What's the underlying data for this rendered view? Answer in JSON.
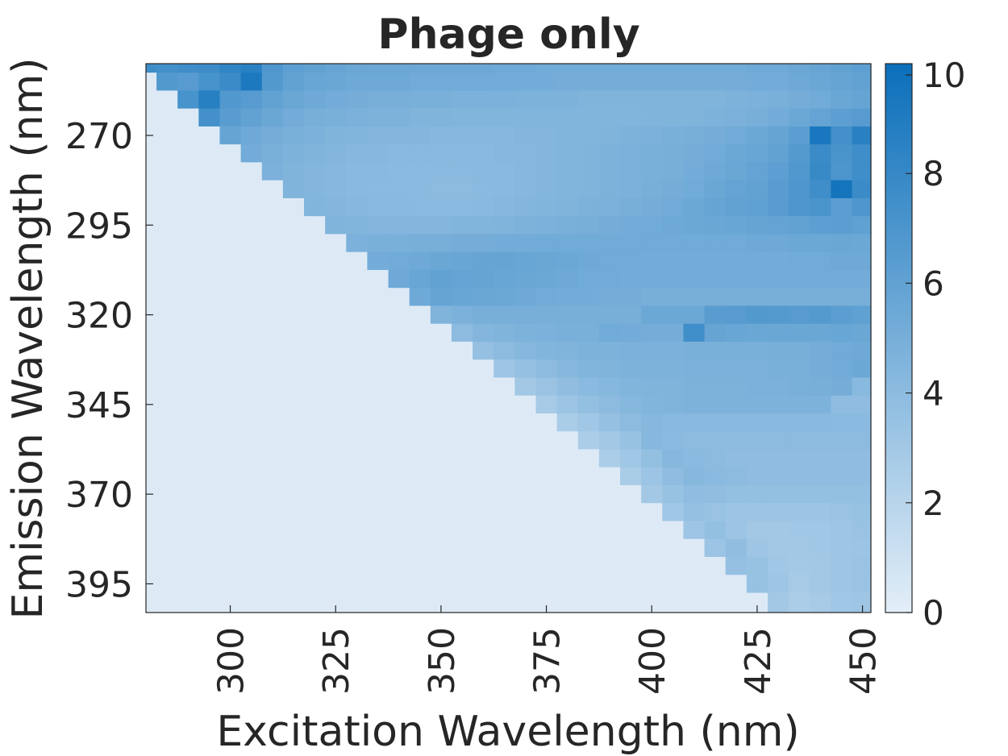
{
  "chart_data": {
    "type": "heatmap",
    "title": "Phage only",
    "xlabel": "Excitation Wavelength (nm)",
    "ylabel": "Emission Wavelength (nm)",
    "x_ticks": [
      300,
      325,
      350,
      375,
      400,
      425,
      450
    ],
    "y_ticks": [
      270,
      295,
      320,
      345,
      370,
      395
    ],
    "colorbar_ticks": [
      0,
      2,
      4,
      6,
      8,
      10
    ],
    "x_range": [
      280,
      452
    ],
    "emission_range": [
      250,
      403
    ],
    "x_centers": [
      280,
      285,
      290,
      295,
      300,
      305,
      310,
      315,
      320,
      325,
      330,
      335,
      340,
      345,
      350,
      355,
      360,
      365,
      370,
      375,
      380,
      385,
      390,
      395,
      400,
      405,
      410,
      415,
      420,
      425,
      430,
      435,
      440,
      445,
      450
    ],
    "y_centers": [
      250,
      255,
      260,
      265,
      270,
      275,
      280,
      285,
      290,
      295,
      300,
      305,
      310,
      315,
      320,
      325,
      330,
      335,
      340,
      345,
      350,
      355,
      360,
      365,
      370,
      375,
      380,
      385,
      390,
      395,
      400
    ],
    "color_range": [
      0,
      10
    ],
    "colors": {
      "low": "#e3eef8",
      "high": "#0b6fba"
    },
    "values": [
      [
        7.6,
        7.4,
        7.6,
        7.7,
        8.3,
        8.6,
        6.9,
        6.2,
        6.0,
        5.8,
        5.6,
        5.6,
        5.6,
        5.5,
        5.5,
        5.5,
        5.5,
        5.4,
        5.4,
        5.3,
        5.3,
        5.3,
        5.3,
        5.3,
        5.3,
        5.3,
        5.3,
        5.3,
        5.3,
        5.4,
        5.4,
        5.6,
        5.8,
        6.0,
        6.2
      ],
      [
        0.3,
        6.7,
        6.5,
        7.2,
        7.8,
        9.2,
        6.7,
        6.0,
        5.7,
        5.6,
        5.4,
        5.4,
        5.4,
        5.3,
        5.3,
        5.3,
        5.3,
        5.2,
        5.2,
        5.2,
        5.1,
        5.1,
        5.1,
        5.1,
        5.1,
        5.1,
        5.1,
        5.1,
        5.1,
        5.2,
        5.2,
        5.4,
        5.6,
        5.8,
        6.0
      ],
      [
        0.3,
        0.3,
        7.2,
        8.7,
        6.8,
        6.5,
        6.0,
        5.6,
        5.4,
        5.2,
        5.1,
        5.0,
        5.0,
        4.9,
        4.9,
        4.8,
        4.8,
        4.8,
        4.7,
        4.7,
        4.7,
        4.6,
        4.6,
        4.6,
        4.6,
        4.6,
        4.6,
        4.6,
        4.7,
        4.8,
        4.9,
        5.1,
        5.3,
        5.6,
        5.8
      ],
      [
        0.3,
        0.3,
        0.3,
        7.4,
        6.4,
        6.0,
        5.6,
        5.2,
        5.0,
        4.9,
        4.8,
        4.7,
        4.7,
        4.6,
        4.6,
        4.5,
        4.5,
        4.5,
        4.5,
        4.5,
        4.5,
        4.5,
        4.5,
        4.5,
        4.6,
        4.6,
        4.6,
        4.7,
        4.8,
        5.0,
        5.2,
        5.5,
        5.9,
        6.2,
        6.5
      ],
      [
        0.3,
        0.3,
        0.3,
        0.3,
        5.8,
        5.4,
        5.1,
        4.9,
        4.8,
        4.6,
        4.5,
        4.4,
        4.4,
        4.4,
        4.3,
        4.3,
        4.3,
        4.3,
        4.4,
        4.4,
        4.5,
        4.5,
        4.6,
        4.7,
        4.8,
        4.9,
        5.0,
        5.1,
        5.3,
        5.5,
        5.8,
        6.3,
        9.4,
        7.4,
        8.6
      ],
      [
        0.3,
        0.3,
        0.3,
        0.3,
        0.3,
        5.2,
        4.9,
        4.7,
        4.6,
        4.4,
        4.3,
        4.3,
        4.2,
        4.2,
        4.2,
        4.2,
        4.2,
        4.3,
        4.3,
        4.4,
        4.5,
        4.6,
        4.7,
        4.8,
        4.9,
        5.0,
        5.1,
        5.3,
        5.5,
        5.7,
        6.0,
        6.6,
        7.8,
        7.1,
        7.6
      ],
      [
        0.3,
        0.3,
        0.3,
        0.3,
        0.3,
        0.3,
        4.8,
        4.6,
        4.4,
        4.3,
        4.2,
        4.2,
        4.1,
        4.1,
        4.1,
        4.1,
        4.2,
        4.2,
        4.3,
        4.4,
        4.5,
        4.6,
        4.7,
        4.8,
        4.9,
        5.0,
        5.2,
        5.4,
        5.6,
        5.9,
        6.2,
        6.8,
        7.9,
        7.0,
        7.6
      ],
      [
        0.3,
        0.3,
        0.3,
        0.3,
        0.3,
        0.3,
        0.3,
        4.6,
        4.4,
        4.3,
        4.2,
        4.1,
        4.1,
        4.1,
        4.0,
        4.0,
        4.1,
        4.2,
        4.3,
        4.4,
        4.5,
        4.6,
        4.7,
        4.8,
        5.0,
        5.1,
        5.3,
        5.6,
        5.9,
        6.0,
        6.4,
        6.9,
        7.6,
        9.6,
        7.8
      ],
      [
        0.3,
        0.3,
        0.3,
        0.3,
        0.3,
        0.3,
        0.3,
        0.3,
        4.5,
        4.4,
        4.3,
        4.2,
        4.2,
        4.1,
        4.1,
        4.1,
        4.2,
        4.3,
        4.4,
        4.5,
        4.6,
        4.7,
        4.8,
        5.0,
        5.1,
        5.3,
        5.5,
        5.8,
        6.0,
        6.1,
        6.5,
        6.9,
        7.1,
        6.3,
        6.9
      ],
      [
        0.3,
        0.3,
        0.3,
        0.3,
        0.3,
        0.3,
        0.3,
        0.3,
        0.3,
        4.6,
        4.5,
        4.4,
        4.4,
        4.4,
        4.4,
        4.5,
        4.5,
        4.6,
        4.7,
        4.8,
        4.9,
        5.0,
        5.1,
        5.2,
        5.3,
        5.4,
        5.5,
        5.6,
        5.7,
        5.8,
        5.9,
        6.0,
        6.2,
        6.3,
        6.1
      ],
      [
        0.3,
        0.3,
        0.3,
        0.3,
        0.3,
        0.3,
        0.3,
        0.3,
        0.3,
        0.3,
        4.8,
        4.9,
        4.9,
        5.0,
        5.0,
        5.1,
        5.1,
        5.2,
        5.2,
        5.3,
        5.3,
        5.3,
        5.3,
        5.3,
        5.3,
        5.3,
        5.3,
        5.3,
        5.3,
        5.4,
        5.4,
        5.5,
        5.5,
        5.6,
        5.5
      ],
      [
        0.3,
        0.3,
        0.3,
        0.3,
        0.3,
        0.3,
        0.3,
        0.3,
        0.3,
        0.3,
        0.3,
        5.2,
        5.3,
        5.4,
        5.6,
        5.7,
        5.8,
        5.8,
        5.7,
        5.6,
        5.5,
        5.4,
        5.3,
        5.3,
        5.2,
        5.2,
        5.2,
        5.2,
        5.2,
        5.2,
        5.2,
        5.3,
        5.3,
        5.4,
        5.4
      ],
      [
        0.3,
        0.3,
        0.3,
        0.3,
        0.3,
        0.3,
        0.3,
        0.3,
        0.3,
        0.3,
        0.3,
        0.3,
        5.4,
        5.7,
        6.0,
        5.9,
        5.8,
        5.7,
        5.6,
        5.5,
        5.4,
        5.3,
        5.3,
        5.2,
        5.2,
        5.2,
        5.2,
        5.2,
        5.2,
        5.2,
        5.2,
        5.2,
        5.2,
        5.2,
        5.2
      ],
      [
        0.3,
        0.3,
        0.3,
        0.3,
        0.3,
        0.3,
        0.3,
        0.3,
        0.3,
        0.3,
        0.3,
        0.3,
        0.3,
        5.4,
        5.8,
        5.7,
        5.6,
        5.5,
        5.4,
        5.3,
        5.2,
        5.2,
        5.1,
        5.1,
        5.0,
        5.0,
        5.0,
        5.0,
        5.0,
        5.0,
        5.0,
        5.0,
        5.0,
        5.0,
        5.0
      ],
      [
        0.3,
        0.3,
        0.3,
        0.3,
        0.3,
        0.3,
        0.3,
        0.3,
        0.3,
        0.3,
        0.3,
        0.3,
        0.3,
        0.3,
        4.6,
        4.8,
        5.0,
        5.0,
        5.0,
        5.0,
        5.0,
        5.0,
        5.0,
        5.0,
        5.5,
        5.5,
        5.5,
        6.4,
        6.5,
        6.7,
        6.6,
        6.5,
        6.6,
        6.3,
        6.1
      ],
      [
        0.3,
        0.3,
        0.3,
        0.3,
        0.3,
        0.3,
        0.3,
        0.3,
        0.3,
        0.3,
        0.3,
        0.3,
        0.3,
        0.3,
        0.3,
        4.0,
        4.4,
        4.6,
        4.7,
        4.8,
        4.9,
        4.9,
        5.3,
        5.2,
        5.1,
        5.1,
        7.5,
        5.8,
        5.7,
        5.6,
        5.6,
        5.6,
        5.6,
        5.7,
        5.6
      ],
      [
        0.3,
        0.3,
        0.3,
        0.3,
        0.3,
        0.3,
        0.3,
        0.3,
        0.3,
        0.3,
        0.3,
        0.3,
        0.3,
        0.3,
        0.3,
        0.3,
        3.6,
        4.0,
        4.3,
        4.5,
        4.6,
        4.7,
        4.7,
        4.8,
        4.8,
        4.8,
        4.9,
        4.9,
        4.9,
        4.9,
        5.0,
        5.0,
        5.1,
        5.3,
        5.4
      ],
      [
        0.3,
        0.3,
        0.3,
        0.3,
        0.3,
        0.3,
        0.3,
        0.3,
        0.3,
        0.3,
        0.3,
        0.3,
        0.3,
        0.3,
        0.3,
        0.3,
        0.3,
        3.2,
        3.6,
        4.0,
        4.3,
        4.5,
        4.6,
        4.7,
        4.7,
        4.7,
        4.8,
        4.8,
        4.8,
        4.8,
        4.9,
        4.9,
        5.1,
        5.3,
        5.5
      ],
      [
        0.3,
        0.3,
        0.3,
        0.3,
        0.3,
        0.3,
        0.3,
        0.3,
        0.3,
        0.3,
        0.3,
        0.3,
        0.3,
        0.3,
        0.3,
        0.3,
        0.3,
        0.3,
        3.0,
        3.4,
        3.8,
        4.1,
        4.3,
        4.5,
        4.6,
        4.6,
        4.7,
        4.7,
        4.7,
        4.8,
        4.8,
        4.9,
        5.0,
        5.1,
        4.2
      ],
      [
        0.3,
        0.3,
        0.3,
        0.3,
        0.3,
        0.3,
        0.3,
        0.3,
        0.3,
        0.3,
        0.3,
        0.3,
        0.3,
        0.3,
        0.3,
        0.3,
        0.3,
        0.3,
        0.3,
        2.8,
        3.3,
        3.7,
        4.0,
        4.3,
        4.5,
        4.6,
        4.7,
        4.7,
        4.7,
        4.7,
        4.7,
        4.7,
        4.7,
        3.9,
        3.9
      ],
      [
        0.3,
        0.3,
        0.3,
        0.3,
        0.3,
        0.3,
        0.3,
        0.3,
        0.3,
        0.3,
        0.3,
        0.3,
        0.3,
        0.3,
        0.3,
        0.3,
        0.3,
        0.3,
        0.3,
        0.3,
        2.7,
        3.1,
        3.6,
        4.0,
        4.3,
        4.2,
        4.2,
        4.2,
        4.2,
        4.2,
        4.2,
        4.2,
        4.2,
        4.1,
        4.1
      ],
      [
        0.3,
        0.3,
        0.3,
        0.3,
        0.3,
        0.3,
        0.3,
        0.3,
        0.3,
        0.3,
        0.3,
        0.3,
        0.3,
        0.3,
        0.3,
        0.3,
        0.3,
        0.3,
        0.3,
        0.3,
        0.3,
        2.6,
        3.0,
        3.5,
        4.3,
        4.1,
        4.0,
        4.0,
        4.0,
        4.0,
        4.0,
        4.0,
        4.0,
        4.0,
        4.0
      ],
      [
        0.3,
        0.3,
        0.3,
        0.3,
        0.3,
        0.3,
        0.3,
        0.3,
        0.3,
        0.3,
        0.3,
        0.3,
        0.3,
        0.3,
        0.3,
        0.3,
        0.3,
        0.3,
        0.3,
        0.3,
        0.3,
        0.3,
        2.6,
        3.1,
        3.7,
        4.3,
        4.1,
        4.0,
        3.9,
        3.9,
        3.9,
        3.9,
        3.9,
        3.9,
        3.9
      ],
      [
        0.3,
        0.3,
        0.3,
        0.3,
        0.3,
        0.3,
        0.3,
        0.3,
        0.3,
        0.3,
        0.3,
        0.3,
        0.3,
        0.3,
        0.3,
        0.3,
        0.3,
        0.3,
        0.3,
        0.3,
        0.3,
        0.3,
        0.3,
        2.7,
        3.3,
        3.9,
        4.3,
        4.1,
        4.0,
        3.9,
        3.9,
        3.9,
        3.9,
        3.9,
        3.9
      ],
      [
        0.3,
        0.3,
        0.3,
        0.3,
        0.3,
        0.3,
        0.3,
        0.3,
        0.3,
        0.3,
        0.3,
        0.3,
        0.3,
        0.3,
        0.3,
        0.3,
        0.3,
        0.3,
        0.3,
        0.3,
        0.3,
        0.3,
        0.3,
        0.3,
        3.0,
        3.5,
        3.9,
        3.8,
        3.7,
        3.7,
        3.7,
        3.7,
        3.7,
        3.7,
        3.7
      ],
      [
        0.3,
        0.3,
        0.3,
        0.3,
        0.3,
        0.3,
        0.3,
        0.3,
        0.3,
        0.3,
        0.3,
        0.3,
        0.3,
        0.3,
        0.3,
        0.3,
        0.3,
        0.3,
        0.3,
        0.3,
        0.3,
        0.3,
        0.3,
        0.3,
        0.3,
        3.1,
        3.6,
        3.4,
        3.3,
        3.3,
        3.3,
        3.3,
        3.3,
        3.4,
        3.5
      ],
      [
        0.3,
        0.3,
        0.3,
        0.3,
        0.3,
        0.3,
        0.3,
        0.3,
        0.3,
        0.3,
        0.3,
        0.3,
        0.3,
        0.3,
        0.3,
        0.3,
        0.3,
        0.3,
        0.3,
        0.3,
        0.3,
        0.3,
        0.3,
        0.3,
        0.3,
        0.3,
        3.2,
        3.7,
        3.3,
        3.0,
        3.0,
        3.1,
        3.1,
        3.2,
        3.4
      ],
      [
        0.3,
        0.3,
        0.3,
        0.3,
        0.3,
        0.3,
        0.3,
        0.3,
        0.3,
        0.3,
        0.3,
        0.3,
        0.3,
        0.3,
        0.3,
        0.3,
        0.3,
        0.3,
        0.3,
        0.3,
        0.3,
        0.3,
        0.3,
        0.3,
        0.3,
        0.3,
        0.3,
        3.3,
        3.8,
        3.2,
        3.0,
        3.0,
        3.1,
        3.2,
        3.3
      ],
      [
        0.3,
        0.3,
        0.3,
        0.3,
        0.3,
        0.3,
        0.3,
        0.3,
        0.3,
        0.3,
        0.3,
        0.3,
        0.3,
        0.3,
        0.3,
        0.3,
        0.3,
        0.3,
        0.3,
        0.3,
        0.3,
        0.3,
        0.3,
        0.3,
        0.3,
        0.3,
        0.3,
        0.3,
        3.6,
        3.5,
        3.1,
        2.9,
        3.0,
        3.2,
        3.4
      ],
      [
        0.3,
        0.3,
        0.3,
        0.3,
        0.3,
        0.3,
        0.3,
        0.3,
        0.3,
        0.3,
        0.3,
        0.3,
        0.3,
        0.3,
        0.3,
        0.3,
        0.3,
        0.3,
        0.3,
        0.3,
        0.3,
        0.3,
        0.3,
        0.3,
        0.3,
        0.3,
        0.3,
        0.3,
        0.3,
        3.5,
        3.2,
        2.8,
        3.0,
        3.2,
        3.4
      ],
      [
        0.3,
        0.3,
        0.3,
        0.3,
        0.3,
        0.3,
        0.3,
        0.3,
        0.3,
        0.3,
        0.3,
        0.3,
        0.3,
        0.3,
        0.3,
        0.3,
        0.3,
        0.3,
        0.3,
        0.3,
        0.3,
        0.3,
        0.3,
        0.3,
        0.3,
        0.3,
        0.3,
        0.3,
        0.3,
        0.3,
        3.0,
        2.6,
        2.8,
        3.1,
        3.2
      ]
    ]
  }
}
